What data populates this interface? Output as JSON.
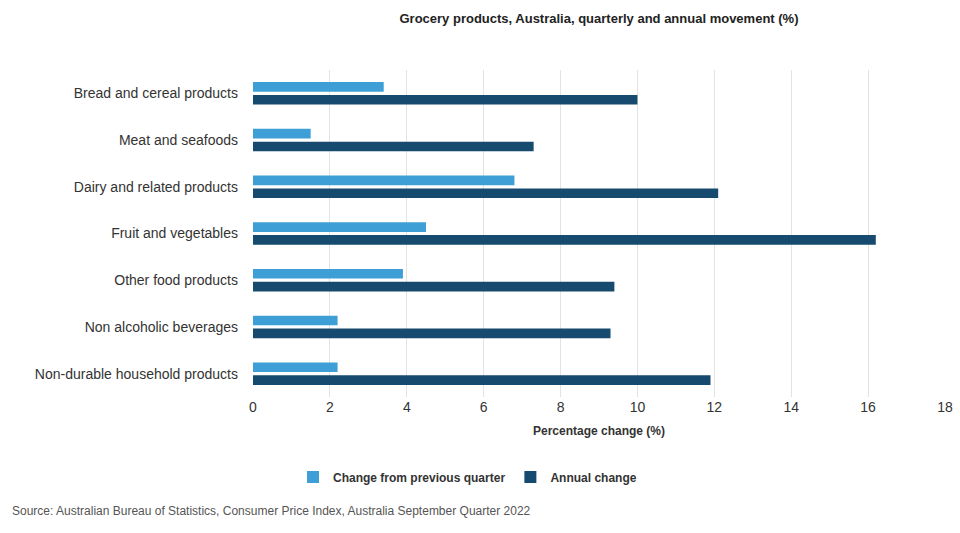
{
  "chart_data": {
    "type": "bar",
    "orientation": "horizontal",
    "title": "Grocery products, Australia, quarterly and annual movement (%)",
    "x_label": "Percentage change (%)",
    "annotations": [
      "Source: Australian Bureau of Statistics, Consumer Price Index, Australia September Quarter 2022"
    ],
    "categories": [
      "Bread and cereal products",
      "Meat and seafoods",
      "Dairy and related products",
      "Fruit and vegetables",
      "Other food products",
      "Non alcoholic beverages",
      "Non-durable household products"
    ],
    "series": [
      {
        "name": "Change from previous quarter",
        "color": "#3e9fd6",
        "values": [
          3.4,
          1.5,
          6.8,
          4.5,
          3.9,
          2.2,
          2.2
        ]
      },
      {
        "name": "Annual change",
        "color": "#164a6e",
        "values": [
          10.0,
          7.3,
          12.1,
          16.2,
          9.4,
          9.3,
          11.9
        ]
      }
    ],
    "xlim": [
      0,
      18
    ],
    "xticks": [
      0,
      2,
      4,
      6,
      8,
      10,
      12,
      14,
      16,
      18
    ],
    "grid": true,
    "legend": "bottom"
  }
}
